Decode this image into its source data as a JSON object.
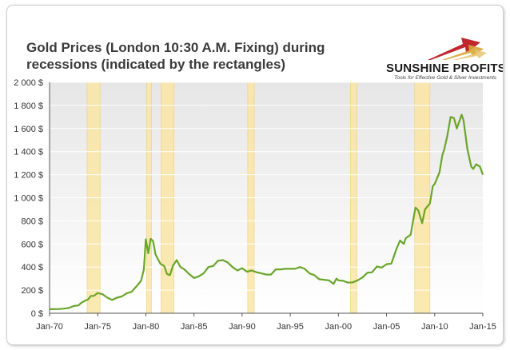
{
  "header": {
    "title_line1": "Gold Prices (London 10:30 A.M. Fixing) during",
    "title_line2": "recessions (indicated by the rectangles)"
  },
  "logo": {
    "name": "SUNSHINE PROFITS",
    "tagline": "Tools for Effective Gold & Silver Investments"
  },
  "colors": {
    "line": "#6aa629",
    "recession_fill": "#fae6a6",
    "recession_stroke": "#f0d27a",
    "plot_bg_top": "#e6e6e6",
    "plot_bg_bottom": "#ffffff",
    "grid": "#ffffff",
    "logo_red": "#c0272d",
    "logo_gold": "#d8a637"
  },
  "chart_data": {
    "type": "line",
    "title": "Gold Prices (London 10:30 A.M. Fixing) during recessions (indicated by the rectangles)",
    "xlabel": "",
    "ylabel": "",
    "xlim": [
      1970.0,
      2015.0
    ],
    "ylim": [
      0,
      2000
    ],
    "grid": true,
    "y_ticks": [
      {
        "value": 0,
        "label": "0 $"
      },
      {
        "value": 200,
        "label": "200 $"
      },
      {
        "value": 400,
        "label": "400 $"
      },
      {
        "value": 600,
        "label": "600 $"
      },
      {
        "value": 800,
        "label": "800 $"
      },
      {
        "value": 1000,
        "label": "1 000 $"
      },
      {
        "value": 1200,
        "label": "1 200 $"
      },
      {
        "value": 1400,
        "label": "1 400 $"
      },
      {
        "value": 1600,
        "label": "1 600 $"
      },
      {
        "value": 1800,
        "label": "1 800 $"
      },
      {
        "value": 2000,
        "label": "2 000 $"
      }
    ],
    "x_ticks": [
      {
        "value": 1970,
        "label": "Jan-70"
      },
      {
        "value": 1975,
        "label": "Jan-75"
      },
      {
        "value": 1980,
        "label": "Jan-80"
      },
      {
        "value": 1985,
        "label": "Jan-85"
      },
      {
        "value": 1990,
        "label": "Jan-90"
      },
      {
        "value": 1995,
        "label": "Jan-95"
      },
      {
        "value": 2000,
        "label": "Jan-00"
      },
      {
        "value": 2005,
        "label": "Jan-05"
      },
      {
        "value": 2010,
        "label": "Jan-10"
      },
      {
        "value": 2015,
        "label": "Jan-15"
      }
    ],
    "recessions": [
      [
        1973.9,
        1975.25
      ],
      [
        1980.08,
        1980.58
      ],
      [
        1981.58,
        1982.92
      ],
      [
        1990.58,
        1991.25
      ],
      [
        2001.25,
        2001.92
      ],
      [
        2007.92,
        2009.5
      ]
    ],
    "series": [
      {
        "values": [
          [
            1970.0,
            35
          ],
          [
            1971.0,
            37
          ],
          [
            1971.5,
            40
          ],
          [
            1972.0,
            46
          ],
          [
            1972.5,
            62
          ],
          [
            1973.0,
            68
          ],
          [
            1973.3,
            90
          ],
          [
            1973.6,
            105
          ],
          [
            1974.0,
            120
          ],
          [
            1974.3,
            150
          ],
          [
            1974.6,
            150
          ],
          [
            1975.0,
            175
          ],
          [
            1975.5,
            165
          ],
          [
            1976.0,
            135
          ],
          [
            1976.5,
            115
          ],
          [
            1977.0,
            135
          ],
          [
            1977.5,
            145
          ],
          [
            1978.0,
            172
          ],
          [
            1978.5,
            185
          ],
          [
            1979.0,
            230
          ],
          [
            1979.5,
            280
          ],
          [
            1979.8,
            380
          ],
          [
            1980.0,
            640
          ],
          [
            1980.25,
            520
          ],
          [
            1980.5,
            645
          ],
          [
            1980.75,
            625
          ],
          [
            1981.0,
            510
          ],
          [
            1981.5,
            430
          ],
          [
            1981.9,
            410
          ],
          [
            1982.2,
            340
          ],
          [
            1982.5,
            330
          ],
          [
            1982.8,
            410
          ],
          [
            1983.2,
            460
          ],
          [
            1983.6,
            400
          ],
          [
            1984.0,
            380
          ],
          [
            1984.5,
            340
          ],
          [
            1985.0,
            305
          ],
          [
            1985.5,
            320
          ],
          [
            1986.0,
            345
          ],
          [
            1986.5,
            400
          ],
          [
            1987.0,
            410
          ],
          [
            1987.5,
            455
          ],
          [
            1988.0,
            460
          ],
          [
            1988.5,
            440
          ],
          [
            1989.0,
            400
          ],
          [
            1989.5,
            370
          ],
          [
            1990.0,
            390
          ],
          [
            1990.5,
            360
          ],
          [
            1991.0,
            370
          ],
          [
            1991.5,
            355
          ],
          [
            1992.0,
            345
          ],
          [
            1992.5,
            335
          ],
          [
            1993.0,
            335
          ],
          [
            1993.5,
            380
          ],
          [
            1994.0,
            380
          ],
          [
            1994.5,
            385
          ],
          [
            1995.0,
            385
          ],
          [
            1995.5,
            385
          ],
          [
            1996.0,
            400
          ],
          [
            1996.5,
            385
          ],
          [
            1997.0,
            345
          ],
          [
            1997.5,
            330
          ],
          [
            1998.0,
            295
          ],
          [
            1998.5,
            290
          ],
          [
            1999.0,
            285
          ],
          [
            1999.5,
            255
          ],
          [
            1999.8,
            300
          ],
          [
            2000.0,
            285
          ],
          [
            2000.5,
            280
          ],
          [
            2001.0,
            265
          ],
          [
            2001.5,
            268
          ],
          [
            2002.0,
            285
          ],
          [
            2002.5,
            310
          ],
          [
            2003.0,
            350
          ],
          [
            2003.5,
            355
          ],
          [
            2004.0,
            405
          ],
          [
            2004.5,
            395
          ],
          [
            2005.0,
            425
          ],
          [
            2005.5,
            430
          ],
          [
            2006.0,
            550
          ],
          [
            2006.4,
            630
          ],
          [
            2006.8,
            600
          ],
          [
            2007.0,
            650
          ],
          [
            2007.5,
            680
          ],
          [
            2008.0,
            915
          ],
          [
            2008.3,
            890
          ],
          [
            2008.7,
            780
          ],
          [
            2009.0,
            900
          ],
          [
            2009.5,
            950
          ],
          [
            2009.8,
            1100
          ],
          [
            2010.0,
            1120
          ],
          [
            2010.5,
            1220
          ],
          [
            2010.8,
            1370
          ],
          [
            2011.0,
            1420
          ],
          [
            2011.3,
            1530
          ],
          [
            2011.65,
            1700
          ],
          [
            2012.0,
            1690
          ],
          [
            2012.3,
            1600
          ],
          [
            2012.8,
            1720
          ],
          [
            2013.0,
            1670
          ],
          [
            2013.4,
            1420
          ],
          [
            2013.8,
            1270
          ],
          [
            2014.0,
            1250
          ],
          [
            2014.3,
            1290
          ],
          [
            2014.7,
            1270
          ],
          [
            2015.0,
            1200
          ]
        ]
      }
    ]
  }
}
